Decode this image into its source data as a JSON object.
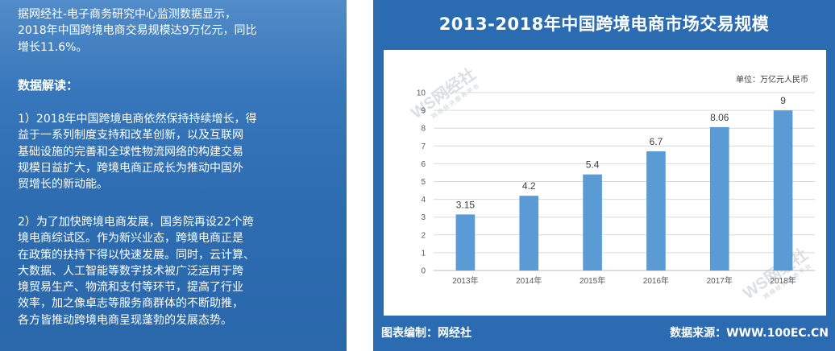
{
  "left_panel": {
    "intro": "据网经社-电子商务研究中心监测数据显示，\n2018年中国跨境电商交易规模达9万亿元，同比\n增长11.6%。",
    "heading": "数据解读：",
    "para1": "1）2018年中国跨境电商依然保持持续增长，得\n益于一系列制度支持和改革创新，以及互联网\n基础设施的完善和全球性物流网络的构建交易\n规模日益扩大，跨境电商正成长为推动中国外\n贸增长的新动能。",
    "para2": "2）为了加快跨境电商发展，国务院再设22个跨\n境电商综试区。作为新兴业态，跨境电商正是\n在政策的扶持下得以快速发展。同时，云计算、\n大数据、人工智能等数字技术被广泛运用于跨\n境贸易生产、物流和支付等环节，提高了行业\n效率，加之像卓志等服务商群体的不断助推，\n各方皆推动跨境电商呈现蓬勃的发展态势。"
  },
  "footer": {
    "left": "图表编制：网经社",
    "right": "数据来源：WWW.100EC.CN"
  },
  "watermark": {
    "logo": "WS网经社",
    "sub": "网 络 经 济 服 务 平 台"
  },
  "colors": {
    "panel_blue": "#2e6db2",
    "bar": "#5b9bd5",
    "gridline": "#d9d9d9"
  },
  "chart_data": {
    "type": "bar",
    "title": "2013-2018年中国跨境电商市场交易规模",
    "unit_label": "单位：万亿元人民币",
    "categories": [
      "2013年",
      "2014年",
      "2015年",
      "2016年",
      "2017年",
      "2018年"
    ],
    "values": [
      3.15,
      4.2,
      5.4,
      6.7,
      8.06,
      9
    ],
    "value_labels": [
      "3.15",
      "4.2",
      "5.4",
      "6.7",
      "8.06",
      "9"
    ],
    "yticks": [
      "0",
      "1",
      "2",
      "3",
      "4",
      "5",
      "6",
      "7",
      "8",
      "9",
      "10"
    ],
    "ylim": [
      0,
      10
    ],
    "grid": true,
    "legend": "none"
  }
}
